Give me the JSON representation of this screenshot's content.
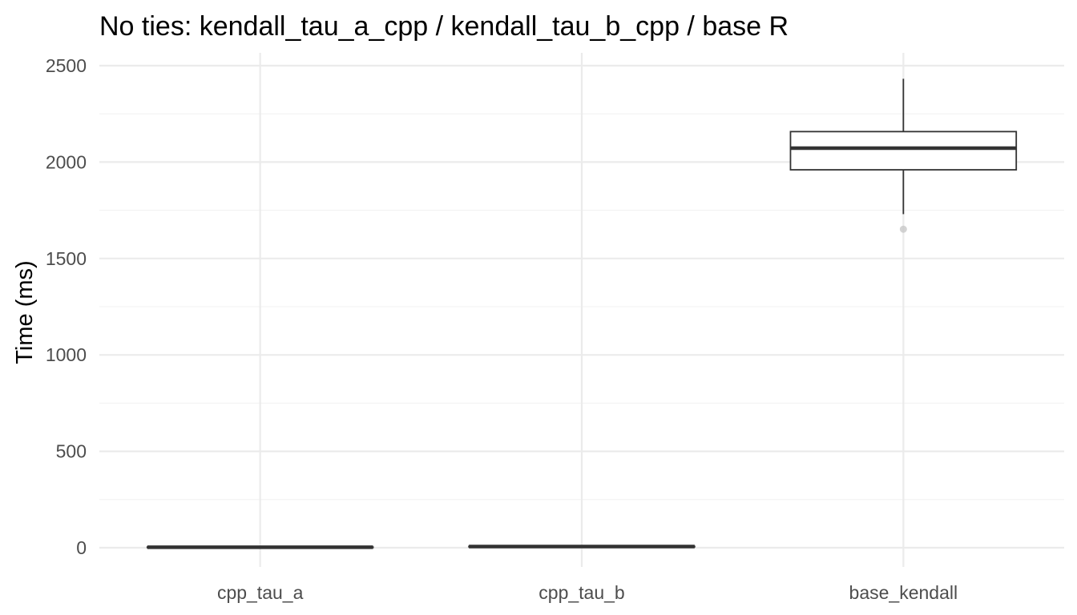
{
  "chart_data": {
    "type": "box",
    "title": "No ties: kendall_tau_a_cpp / kendall_tau_b_cpp / base R",
    "ylabel": "Time (ms)",
    "xlabel": "",
    "ylim": [
      -100,
      2565
    ],
    "yticks": [
      0,
      500,
      1000,
      1500,
      2000,
      2500
    ],
    "ytick_labels": [
      "0",
      "500",
      "1000",
      "1500",
      "2000",
      "2500"
    ],
    "yminor": [
      250,
      750,
      1250,
      1750,
      2250
    ],
    "grid": true,
    "legend": "none",
    "categories": [
      "cpp_tau_a",
      "cpp_tau_b",
      "base_kendall"
    ],
    "boxes": [
      {
        "category": "cpp_tau_a",
        "lower_whisker": 0.5,
        "q1": 1.5,
        "median": 2.5,
        "q3": 3.5,
        "upper_whisker": 5,
        "outliers": []
      },
      {
        "category": "cpp_tau_b",
        "lower_whisker": 4,
        "q1": 5,
        "median": 6,
        "q3": 7,
        "upper_whisker": 9,
        "outliers": []
      },
      {
        "category": "base_kendall",
        "lower_whisker": 1730,
        "q1": 1960,
        "median": 2072,
        "q3": 2158,
        "upper_whisker": 2432,
        "outliers": [
          1652
        ]
      }
    ],
    "colors": {
      "box_line": "#333333",
      "box_fill": "#ffffff",
      "outlier": "#c8c8c8",
      "grid": "#ebebeb"
    }
  }
}
